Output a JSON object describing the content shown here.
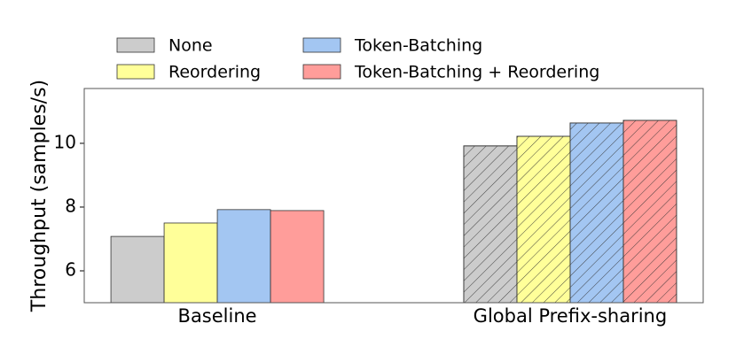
{
  "chart_data": {
    "type": "bar",
    "y_label": "Throughput (samples/s)",
    "categories": [
      "Baseline",
      "Global Prefix-sharing"
    ],
    "hatched": [
      false,
      true
    ],
    "series": [
      {
        "name": "None",
        "color": "#cccccc",
        "values": [
          7.08,
          9.92
        ]
      },
      {
        "name": "Reordering",
        "color": "#ffff99",
        "values": [
          7.5,
          10.22
        ]
      },
      {
        "name": "Token-Batching",
        "color": "#a3c6f2",
        "values": [
          7.92,
          10.64
        ]
      },
      {
        "name": "Token-Batching + Reordering",
        "color": "#ff9d9a",
        "values": [
          7.89,
          10.72
        ]
      }
    ],
    "ylim": [
      5,
      11.72
    ],
    "yticks": [
      6,
      8,
      10
    ],
    "grid": false
  }
}
